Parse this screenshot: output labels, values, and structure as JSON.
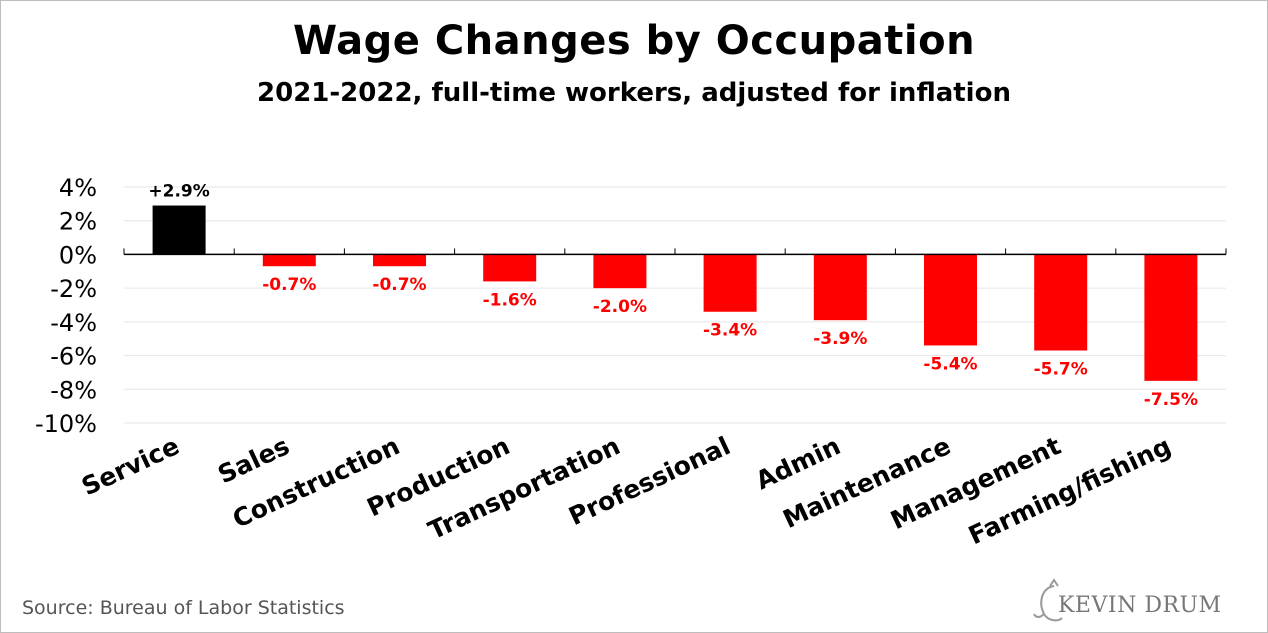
{
  "chart_data": {
    "type": "bar",
    "title": "Wage Changes by Occupation",
    "subtitle": "2021-2022, full-time workers, adjusted for inflation",
    "categories": [
      "Service",
      "Sales",
      "Construction",
      "Production",
      "Transportation",
      "Professional",
      "Admin",
      "Maintenance",
      "Management",
      "Farming/fishing"
    ],
    "values": [
      2.9,
      -0.7,
      -0.7,
      -1.6,
      -2.0,
      -3.4,
      -3.9,
      -5.4,
      -5.7,
      -7.5
    ],
    "data_labels": [
      "+2.9%",
      "-0.7%",
      "-0.7%",
      "-1.6%",
      "-2.0%",
      "-3.4%",
      "-3.9%",
      "-5.4%",
      "-5.7%",
      "-7.5%"
    ],
    "ylim": [
      -10,
      4
    ],
    "yticks": [
      4,
      2,
      0,
      -2,
      -4,
      -6,
      -8,
      -10
    ],
    "ytick_labels": [
      "4%",
      "2%",
      "0%",
      "-2%",
      "-4%",
      "-6%",
      "-8%",
      "-10%"
    ],
    "xlabel": "",
    "ylabel": "",
    "grid": true,
    "colors": {
      "positive": "#000000",
      "negative": "#ff0000",
      "grid": "#e6e6e6",
      "axis": "#000000"
    }
  },
  "footer": {
    "source": "Source: Bureau of Labor Statistics",
    "logo_text": "KEVIN DRUM"
  }
}
